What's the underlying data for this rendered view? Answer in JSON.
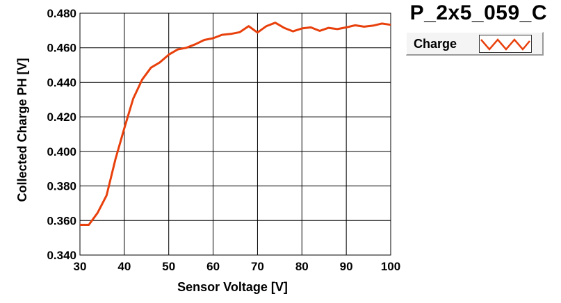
{
  "chart_data": {
    "type": "line",
    "title": "P_2x5_059_C",
    "xlabel": "Sensor Voltage [V]",
    "ylabel": "Collected Charge PH [V]",
    "xlim": [
      30,
      100
    ],
    "ylim": [
      0.34,
      0.48
    ],
    "x_ticks": [
      "30",
      "40",
      "50",
      "60",
      "70",
      "80",
      "90",
      "100"
    ],
    "y_ticks": [
      "0.340",
      "0.360",
      "0.380",
      "0.400",
      "0.420",
      "0.440",
      "0.460",
      "0.480"
    ],
    "grid": true,
    "legend": "top-right",
    "series": [
      {
        "name": "Charge",
        "color": "#e8400c",
        "x": [
          30,
          32,
          34,
          36,
          38,
          40,
          42,
          44,
          46,
          48,
          50,
          52,
          54,
          56,
          58,
          60,
          62,
          64,
          66,
          68,
          70,
          72,
          74,
          76,
          78,
          80,
          82,
          84,
          86,
          88,
          90,
          92,
          94,
          96,
          98,
          100
        ],
        "y": [
          0.3575,
          0.3575,
          0.3645,
          0.3745,
          0.3955,
          0.4135,
          0.4305,
          0.4415,
          0.4485,
          0.4515,
          0.456,
          0.459,
          0.46,
          0.462,
          0.4645,
          0.4655,
          0.4675,
          0.468,
          0.469,
          0.4725,
          0.4688,
          0.4725,
          0.4745,
          0.4715,
          0.4695,
          0.4712,
          0.4718,
          0.4698,
          0.4715,
          0.4708,
          0.4718,
          0.473,
          0.4722,
          0.4728,
          0.474,
          0.4733
        ]
      }
    ]
  }
}
